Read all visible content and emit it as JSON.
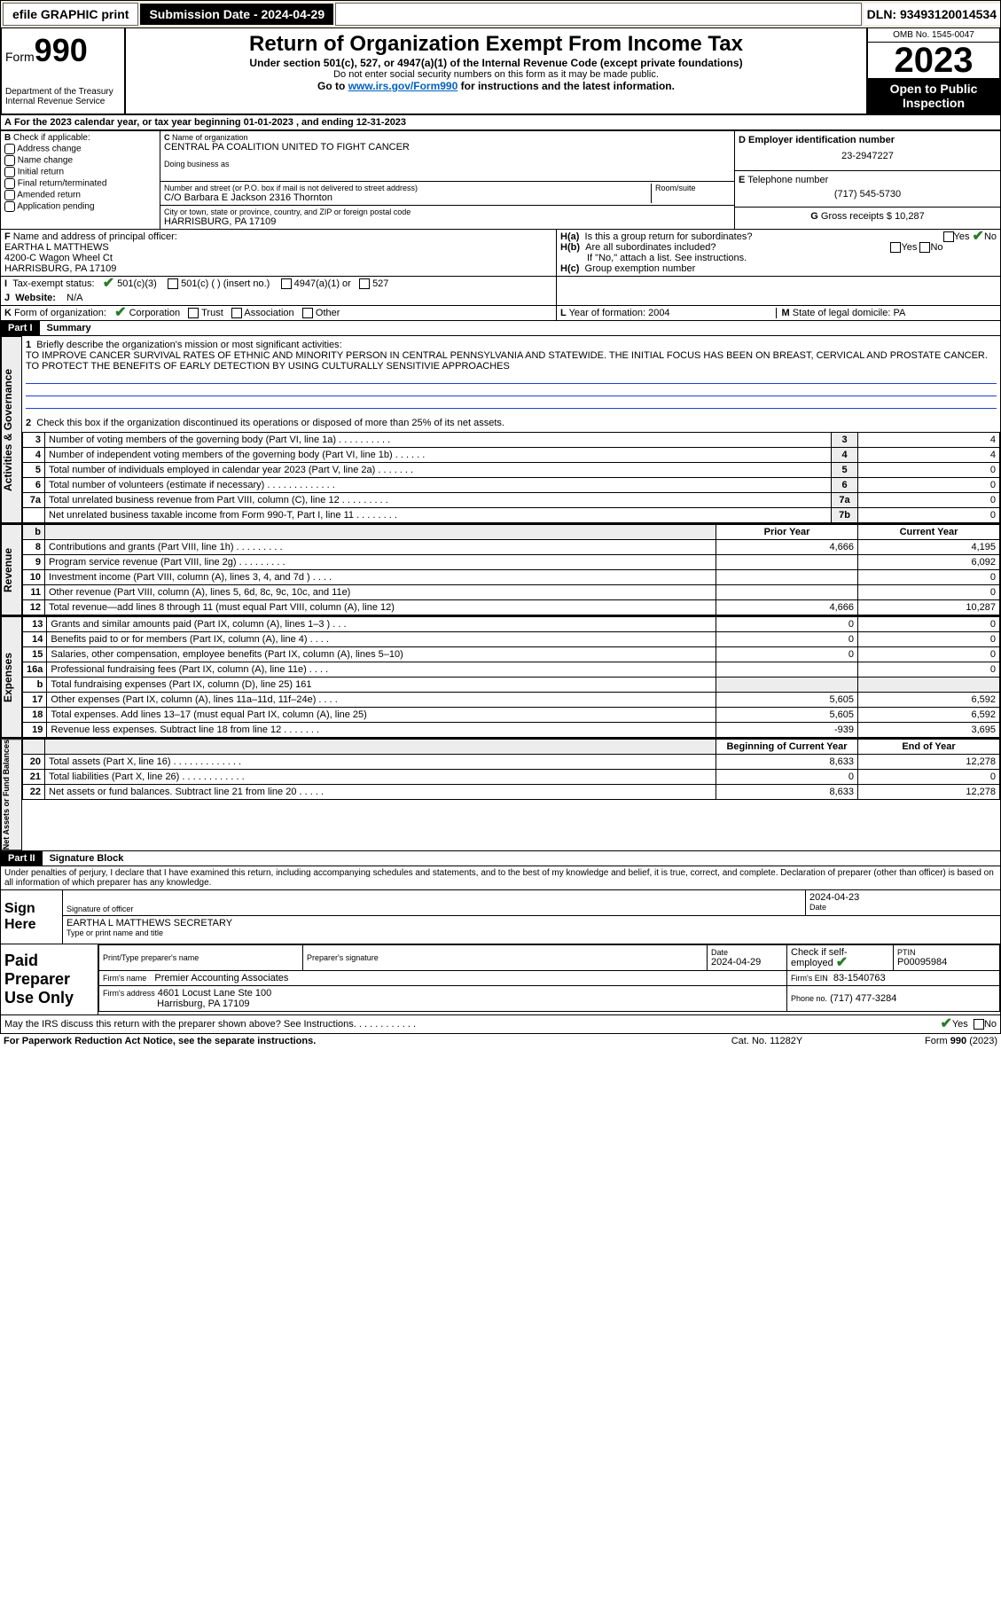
{
  "topbar": {
    "efile": "efile GRAPHIC print",
    "submission": "Submission Date - 2024-04-29",
    "dln": "DLN: 93493120014534"
  },
  "header": {
    "form_prefix": "Form",
    "form_no": "990",
    "title": "Return of Organization Exempt From Income Tax",
    "sub1": "Under section 501(c), 527, or 4947(a)(1) of the Internal Revenue Code (except private foundations)",
    "sub2": "Do not enter social security numbers on this form as it may be made public.",
    "sub3_prefix": "Go to ",
    "sub3_link": "www.irs.gov/Form990",
    "sub3_suffix": " for instructions and the latest information.",
    "dept": "Department of the Treasury",
    "irs": "Internal Revenue Service",
    "omb": "OMB No. 1545-0047",
    "year": "2023",
    "insp1": "Open to Public",
    "insp2": "Inspection"
  },
  "sectionA": {
    "taxyear": "For the 2023 calendar year, or tax year beginning 01-01-2023   , and ending 12-31-2023",
    "B_label": "Check if applicable:",
    "B_opts": [
      "Address change",
      "Name change",
      "Initial return",
      "Final return/terminated",
      "Amended return",
      "Application pending"
    ],
    "C_label": "Name of organization",
    "C_name": "CENTRAL PA COALITION UNITED TO FIGHT CANCER",
    "dba_label": "Doing business as",
    "addr_label": "Number and street (or P.O. box if mail is not delivered to street address)",
    "room_label": "Room/suite",
    "addr": "C/O Barbara E Jackson 2316 Thornton",
    "city_label": "City or town, state or province, country, and ZIP or foreign postal code",
    "city": "HARRISBURG, PA  17109",
    "D_label": "Employer identification number",
    "D_val": "23-2947227",
    "E_label": "Telephone number",
    "E_val": "(717) 545-5730",
    "G_label": "Gross receipts $",
    "G_val": "10,287",
    "F_label": "Name and address of principal officer:",
    "F_name": "EARTHA L MATTHEWS",
    "F_addr1": "4200-C Wagon Wheel Ct",
    "F_addr2": "HARRISBURG, PA  17109",
    "Ha_label": "Is this a group return for subordinates?",
    "Hb_label": "Are all subordinates included?",
    "H_note": "If \"No,\" attach a list. See instructions.",
    "Hc_label": "Group exemption number",
    "yes": "Yes",
    "no": "No",
    "I_label": "Tax-exempt status:",
    "I_501c3": "501(c)(3)",
    "I_501c": "501(c) (  ) (insert no.)",
    "I_4947": "4947(a)(1) or",
    "I_527": "527",
    "J_label": "Website:",
    "J_val": "N/A",
    "K_label": "Form of organization:",
    "K_opts": [
      "Corporation",
      "Trust",
      "Association",
      "Other"
    ],
    "L_label": "Year of formation:",
    "L_val": "2004",
    "M_label": "State of legal domicile:",
    "M_val": "PA"
  },
  "part1": {
    "hdr": "Part I",
    "title": "Summary",
    "q1_label": "Briefly describe the organization's mission or most significant activities:",
    "q1_text": "TO IMPROVE CANCER SURVIVAL RATES OF ETHNIC AND MINORITY PERSON IN CENTRAL PENNSYLVANIA AND STATEWIDE. THE INITIAL FOCUS HAS BEEN ON BREAST, CERVICAL AND PROSTATE CANCER. TO PROTECT THE BENEFITS OF EARLY DETECTION BY USING CULTURALLY SENSITIVIE APPROACHES",
    "q2": "Check this box      if the organization discontinued its operations or disposed of more than 25% of its net assets.",
    "rows_top": [
      {
        "n": "3",
        "d": "Number of voting members of the governing body (Part VI, line 1a)  .    .    .    .    .    .    .    .    .    .",
        "lbl": "3",
        "v": "4"
      },
      {
        "n": "4",
        "d": "Number of independent voting members of the governing body (Part VI, line 1b)  .    .    .    .    .    .",
        "lbl": "4",
        "v": "4"
      },
      {
        "n": "5",
        "d": "Total number of individuals employed in calendar year 2023 (Part V, line 2a)  .    .    .    .    .    .    .",
        "lbl": "5",
        "v": "0"
      },
      {
        "n": "6",
        "d": "Total number of volunteers (estimate if necessary)  .    .    .    .    .    .    .    .    .    .    .    .    .",
        "lbl": "6",
        "v": "0"
      },
      {
        "n": "7a",
        "d": "Total unrelated business revenue from Part VIII, column (C), line 12  .    .    .    .    .    .    .    .    .",
        "lbl": "7a",
        "v": "0"
      },
      {
        "n": "",
        "d": "Net unrelated business taxable income from Form 990-T, Part I, line 11  .    .    .    .    .    .    .    .",
        "lbl": "7b",
        "v": "0"
      }
    ],
    "col_prior": "Prior Year",
    "col_curr": "Current Year",
    "rows_rev": [
      {
        "n": "8",
        "d": "Contributions and grants (Part VIII, line 1h)  .    .    .    .    .    .    .    .    .",
        "p": "4,666",
        "c": "4,195"
      },
      {
        "n": "9",
        "d": "Program service revenue (Part VIII, line 2g)  .    .    .    .    .    .    .    .    .",
        "p": "",
        "c": "6,092"
      },
      {
        "n": "10",
        "d": "Investment income (Part VIII, column (A), lines 3, 4, and 7d )  .    .    .    .",
        "p": "",
        "c": "0"
      },
      {
        "n": "11",
        "d": "Other revenue (Part VIII, column (A), lines 5, 6d, 8c, 9c, 10c, and 11e)",
        "p": "",
        "c": "0"
      },
      {
        "n": "12",
        "d": "Total revenue—add lines 8 through 11 (must equal Part VIII, column (A), line 12)",
        "p": "4,666",
        "c": "10,287"
      }
    ],
    "rows_exp": [
      {
        "n": "13",
        "d": "Grants and similar amounts paid (Part IX, column (A), lines 1–3 )  .    .    .",
        "p": "0",
        "c": "0"
      },
      {
        "n": "14",
        "d": "Benefits paid to or for members (Part IX, column (A), line 4)  .    .    .    .",
        "p": "0",
        "c": "0"
      },
      {
        "n": "15",
        "d": "Salaries, other compensation, employee benefits (Part IX, column (A), lines 5–10)",
        "p": "0",
        "c": "0"
      },
      {
        "n": "16a",
        "d": "Professional fundraising fees (Part IX, column (A), line 11e)  .    .    .    .",
        "p": "",
        "c": "0"
      },
      {
        "n": "b",
        "d": "Total fundraising expenses (Part IX, column (D), line 25) 161",
        "p": "",
        "c": "",
        "grey": true
      },
      {
        "n": "17",
        "d": "Other expenses (Part IX, column (A), lines 11a–11d, 11f–24e)  .    .    .    .",
        "p": "5,605",
        "c": "6,592"
      },
      {
        "n": "18",
        "d": "Total expenses. Add lines 13–17 (must equal Part IX, column (A), line 25)",
        "p": "5,605",
        "c": "6,592"
      },
      {
        "n": "19",
        "d": "Revenue less expenses. Subtract line 18 from line 12  .    .    .    .    .    .    .",
        "p": "-939",
        "c": "3,695"
      }
    ],
    "col_beg": "Beginning of Current Year",
    "col_end": "End of Year",
    "rows_na": [
      {
        "n": "20",
        "d": "Total assets (Part X, line 16)  .    .    .    .    .    .    .    .    .    .    .    .    .",
        "p": "8,633",
        "c": "12,278"
      },
      {
        "n": "21",
        "d": "Total liabilities (Part X, line 26)  .    .    .    .    .    .    .    .    .    .    .    .",
        "p": "0",
        "c": "0"
      },
      {
        "n": "22",
        "d": "Net assets or fund balances. Subtract line 21 from line 20  .    .    .    .    .",
        "p": "8,633",
        "c": "12,278"
      }
    ],
    "vtab_gov": "Activities & Governance",
    "vtab_rev": "Revenue",
    "vtab_exp": "Expenses",
    "vtab_na": "Net Assets or Fund Balances"
  },
  "part2": {
    "hdr": "Part II",
    "title": "Signature Block",
    "perjury": "Under penalties of perjury, I declare that I have examined this return, including accompanying schedules and statements, and to the best of my knowledge and belief, it is true, correct, and complete. Declaration of preparer (other than officer) is based on all information of which preparer has any knowledge.",
    "sign_here": "Sign Here",
    "sig_officer_lbl": "Signature of officer",
    "sig_date_lbl": "Date",
    "sig_date": "2024-04-23",
    "sig_name": "EARTHA L MATTHEWS  SECRETARY",
    "sig_name_lbl": "Type or print name and title",
    "paid": "Paid Preparer Use Only",
    "prep_name_lbl": "Print/Type preparer's name",
    "prep_sig_lbl": "Preparer's signature",
    "prep_date_lbl": "Date",
    "prep_date": "2024-04-29",
    "prep_check_lbl": "Check      if self-employed",
    "ptin_lbl": "PTIN",
    "ptin": "P00095984",
    "firm_name_lbl": "Firm's name",
    "firm_name": "Premier Accounting Associates",
    "firm_ein_lbl": "Firm's EIN",
    "firm_ein": "83-1540763",
    "firm_addr_lbl": "Firm's address",
    "firm_addr1": "4601 Locust Lane Ste 100",
    "firm_addr2": "Harrisburg, PA  17109",
    "phone_lbl": "Phone no.",
    "phone": "(717) 477-3284",
    "discuss": "May the IRS discuss this return with the preparer shown above? See Instructions.  .    .    .    .    .    .    .    .    .    .    ."
  },
  "footer": {
    "pra": "For Paperwork Reduction Act Notice, see the separate instructions.",
    "cat": "Cat. No. 11282Y",
    "form": "Form 990 (2023)"
  },
  "labels": {
    "B": "B",
    "C": "C",
    "D": "D",
    "E": "E",
    "F": "F",
    "G": "G",
    "H_a": "H(a)",
    "H_b": "H(b)",
    "H_c": "H(c)",
    "I": "I",
    "J": "J",
    "K": "K",
    "L": "L",
    "M": "M",
    "A": "A",
    "one": "1",
    "two": "2",
    "b": "b"
  }
}
